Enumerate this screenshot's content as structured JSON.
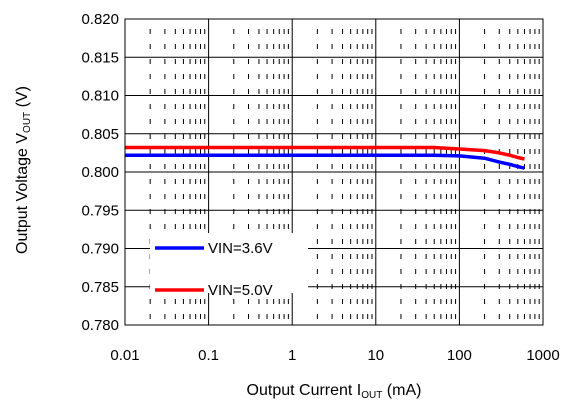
{
  "chart_data": {
    "type": "line",
    "x_scale": "log",
    "xlim": [
      0.01,
      1000
    ],
    "ylim": [
      0.78,
      0.82
    ],
    "x_ticks": [
      0.01,
      0.1,
      1,
      10,
      100,
      1000
    ],
    "x_tick_labels": [
      "0.01",
      "0.1",
      "1",
      "10",
      "100",
      "1000"
    ],
    "y_ticks": [
      0.78,
      0.785,
      0.79,
      0.795,
      0.8,
      0.805,
      0.81,
      0.815,
      0.82
    ],
    "y_tick_labels": [
      "0.780",
      "0.785",
      "0.790",
      "0.795",
      "0.800",
      "0.805",
      "0.810",
      "0.815",
      "0.820"
    ],
    "grid": true,
    "minor_grid_style": "dashed",
    "legend_position": "lower-left",
    "xlabel": {
      "prefix": "Output Current I",
      "sub": "OUT",
      "suffix": " (mA)"
    },
    "ylabel": {
      "prefix": "Output Voltage V",
      "sub": "OUT",
      "suffix": "  (V)"
    },
    "series": [
      {
        "name": "VIN=3.6V",
        "color": "#0000ff",
        "points": [
          [
            0.01,
            0.8022
          ],
          [
            50,
            0.8022
          ],
          [
            100,
            0.8021
          ],
          [
            200,
            0.8018
          ],
          [
            300,
            0.8013
          ],
          [
            400,
            0.801
          ],
          [
            500,
            0.8007
          ],
          [
            600,
            0.8005
          ]
        ]
      },
      {
        "name": "VIN=5.0V",
        "color": "#ff0000",
        "points": [
          [
            0.01,
            0.8032
          ],
          [
            50,
            0.8032
          ],
          [
            70,
            0.8031
          ],
          [
            100,
            0.803
          ],
          [
            200,
            0.8028
          ],
          [
            300,
            0.8025
          ],
          [
            400,
            0.8022
          ],
          [
            500,
            0.8019
          ],
          [
            600,
            0.8017
          ]
        ]
      }
    ]
  }
}
